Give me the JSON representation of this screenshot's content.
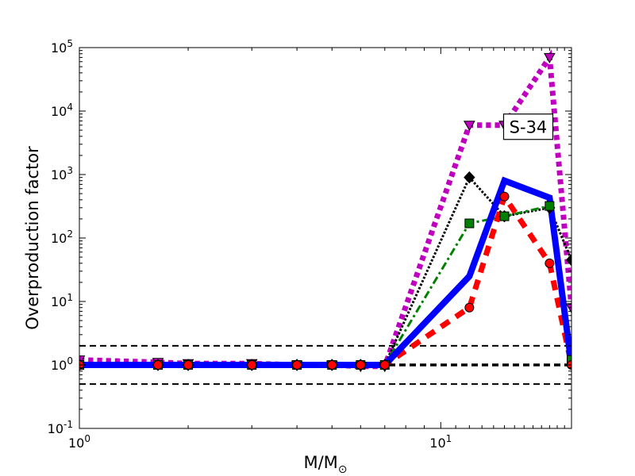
{
  "chart_data": {
    "type": "line",
    "xscale": "log",
    "yscale": "log",
    "xlim": [
      1,
      23
    ],
    "ylim": [
      0.1,
      100000
    ],
    "ylabel": "Overproduction factor",
    "xlabel": {
      "main": "M/M",
      "sub": "⊙"
    },
    "xticks": [
      {
        "base": "10",
        "exp": "0",
        "value": 1
      },
      {
        "base": "10",
        "exp": "1",
        "value": 10
      }
    ],
    "yticks": [
      {
        "base": "10",
        "exp": "-1",
        "value": 0.1
      },
      {
        "base": "10",
        "exp": "0",
        "value": 1
      },
      {
        "base": "10",
        "exp": "1",
        "value": 10
      },
      {
        "base": "10",
        "exp": "2",
        "value": 100
      },
      {
        "base": "10",
        "exp": "3",
        "value": 1000
      },
      {
        "base": "10",
        "exp": "4",
        "value": 10000
      },
      {
        "base": "10",
        "exp": "5",
        "value": 100000
      }
    ],
    "annotation": {
      "text": "S-34",
      "x": 15,
      "y": 6000
    },
    "reference_lines": [
      {
        "y": 2,
        "style": "dashed",
        "color": "#000000",
        "width": 2
      },
      {
        "y": 1,
        "style": "dashed",
        "color": "#000000",
        "width": 3.5
      },
      {
        "y": 0.5,
        "style": "dashed",
        "color": "#000000",
        "width": 2
      }
    ],
    "series": [
      {
        "color": "#bf00bf",
        "dash": "dotted",
        "width": 7,
        "marker": "triangle-down",
        "x": [
          1,
          1.65,
          2,
          3,
          4,
          5,
          6,
          7,
          12,
          15,
          20,
          23
        ],
        "y": [
          1.2,
          1.1,
          1.05,
          1.05,
          1.0,
          1.0,
          0.95,
          0.95,
          6000,
          6000,
          70000,
          8
        ]
      },
      {
        "color": "#000000",
        "dash": "dotted",
        "width": 3,
        "marker": "diamond",
        "x": [
          1,
          1.65,
          2,
          3,
          4,
          5,
          6,
          7,
          12,
          15,
          20,
          23
        ],
        "y": [
          1.0,
          1.0,
          1.0,
          1.0,
          1.0,
          1.0,
          1.0,
          1.0,
          900,
          220,
          300,
          45
        ]
      },
      {
        "color": "#008000",
        "dash": "dashdot",
        "width": 3,
        "marker": "square",
        "x": [
          1,
          1.65,
          2,
          3,
          4,
          5,
          6,
          7,
          12,
          15,
          20,
          23
        ],
        "y": [
          1.0,
          1.0,
          1.0,
          1.0,
          1.0,
          1.0,
          1.0,
          1.0,
          170,
          220,
          320,
          1.2
        ]
      },
      {
        "color": "#ff0000",
        "dash": "dashed",
        "width": 7,
        "marker": "circle",
        "x": [
          1,
          1.65,
          2,
          3,
          4,
          5,
          6,
          7,
          12,
          15,
          20,
          23
        ],
        "y": [
          1.0,
          1.0,
          1.0,
          1.0,
          1.0,
          1.0,
          1.0,
          1.0,
          8,
          450,
          40,
          1.0
        ]
      },
      {
        "color": "#0000ff",
        "dash": "solid",
        "width": 8,
        "marker": "none",
        "x": [
          1,
          1.65,
          2,
          3,
          4,
          5,
          6,
          7,
          12,
          15,
          20,
          23
        ],
        "y": [
          1.0,
          1.0,
          1.0,
          1.0,
          1.0,
          1.0,
          1.0,
          1.0,
          25,
          800,
          430,
          1.0
        ]
      }
    ]
  }
}
